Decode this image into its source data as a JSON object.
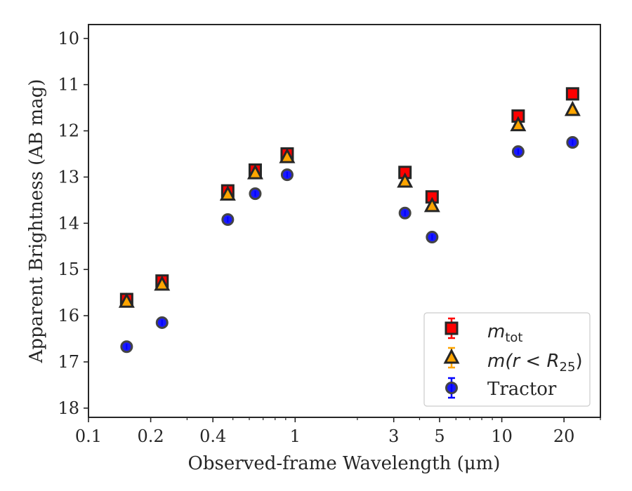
{
  "chart_data": {
    "type": "scatter",
    "xlabel": "Observed-frame Wavelength (μm)",
    "ylabel": "Apparent Brightness (AB mag)",
    "xscale": "log",
    "xlim": [
      0.1,
      30
    ],
    "ylim": [
      18.2,
      9.7
    ],
    "y_inverted": true,
    "xticks": [
      {
        "value": 0.1,
        "label": "0.1"
      },
      {
        "value": 0.2,
        "label": "0.2"
      },
      {
        "value": 0.4,
        "label": "0.4"
      },
      {
        "value": 1,
        "label": "1"
      },
      {
        "value": 3,
        "label": "3"
      },
      {
        "value": 5,
        "label": "5"
      },
      {
        "value": 10,
        "label": "10"
      },
      {
        "value": 20,
        "label": "20"
      }
    ],
    "yticks": [
      10,
      11,
      12,
      13,
      14,
      15,
      16,
      17,
      18
    ],
    "legend_position": "lower-right",
    "series": [
      {
        "name": "m_tot",
        "marker": "square",
        "color": "#ff0000",
        "edge": "#262626",
        "x": [
          0.153,
          0.227,
          0.472,
          0.641,
          0.915,
          3.4,
          4.6,
          12.0,
          22.0
        ],
        "y": [
          15.65,
          15.25,
          13.3,
          12.85,
          12.5,
          12.9,
          13.43,
          11.68,
          11.2
        ]
      },
      {
        "name": "m(r < R25)",
        "marker": "triangle",
        "color": "#ffa500",
        "edge": "#262626",
        "x": [
          0.153,
          0.227,
          0.472,
          0.641,
          0.915,
          3.4,
          4.6,
          12.0,
          22.0
        ],
        "y": [
          15.7,
          15.33,
          13.38,
          12.92,
          12.57,
          13.1,
          13.63,
          11.88,
          11.55
        ]
      },
      {
        "name": "Tractor",
        "marker": "circle",
        "color": "#0000ff",
        "edge": "#444444",
        "x": [
          0.153,
          0.227,
          0.472,
          0.641,
          0.915,
          3.4,
          4.6,
          12.0,
          22.0
        ],
        "y": [
          16.67,
          16.15,
          13.92,
          13.36,
          12.95,
          13.78,
          14.3,
          12.45,
          12.25
        ]
      }
    ]
  },
  "legend": {
    "m_tot_base": "m",
    "m_tot_sub": "tot",
    "m_r_text": "m(r < R",
    "m_r_sub": "25",
    "m_r_close": ")",
    "tractor": "Tractor"
  }
}
